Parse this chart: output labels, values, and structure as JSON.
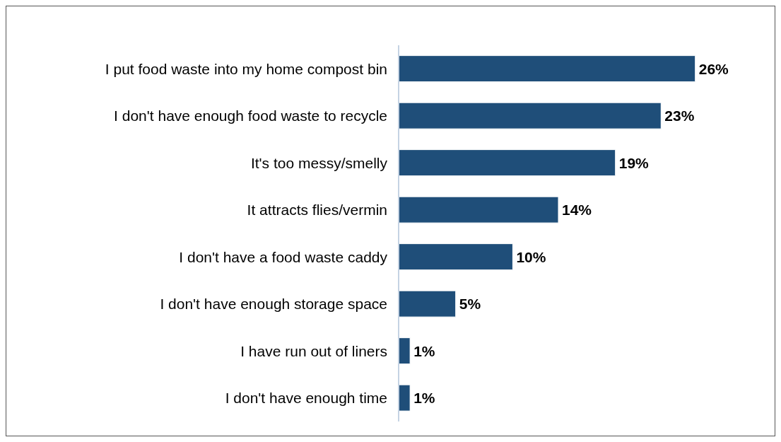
{
  "chart_data": {
    "type": "bar",
    "orientation": "horizontal",
    "categories": [
      "I put food waste into my home compost bin",
      "I don't have enough food waste to recycle",
      "It's too messy/smelly",
      "It attracts flies/vermin",
      "I don't have a food waste caddy",
      "I don't have enough storage space",
      "I have run out of liners",
      "I don't have enough time"
    ],
    "values": [
      26,
      23,
      19,
      14,
      10,
      5,
      1,
      1
    ],
    "value_labels": [
      "26%",
      "23%",
      "19%",
      "14%",
      "10%",
      "5%",
      "1%",
      "1%"
    ],
    "color": "#1f4e79",
    "grid": false,
    "legend": false,
    "tick_labels": "y"
  }
}
